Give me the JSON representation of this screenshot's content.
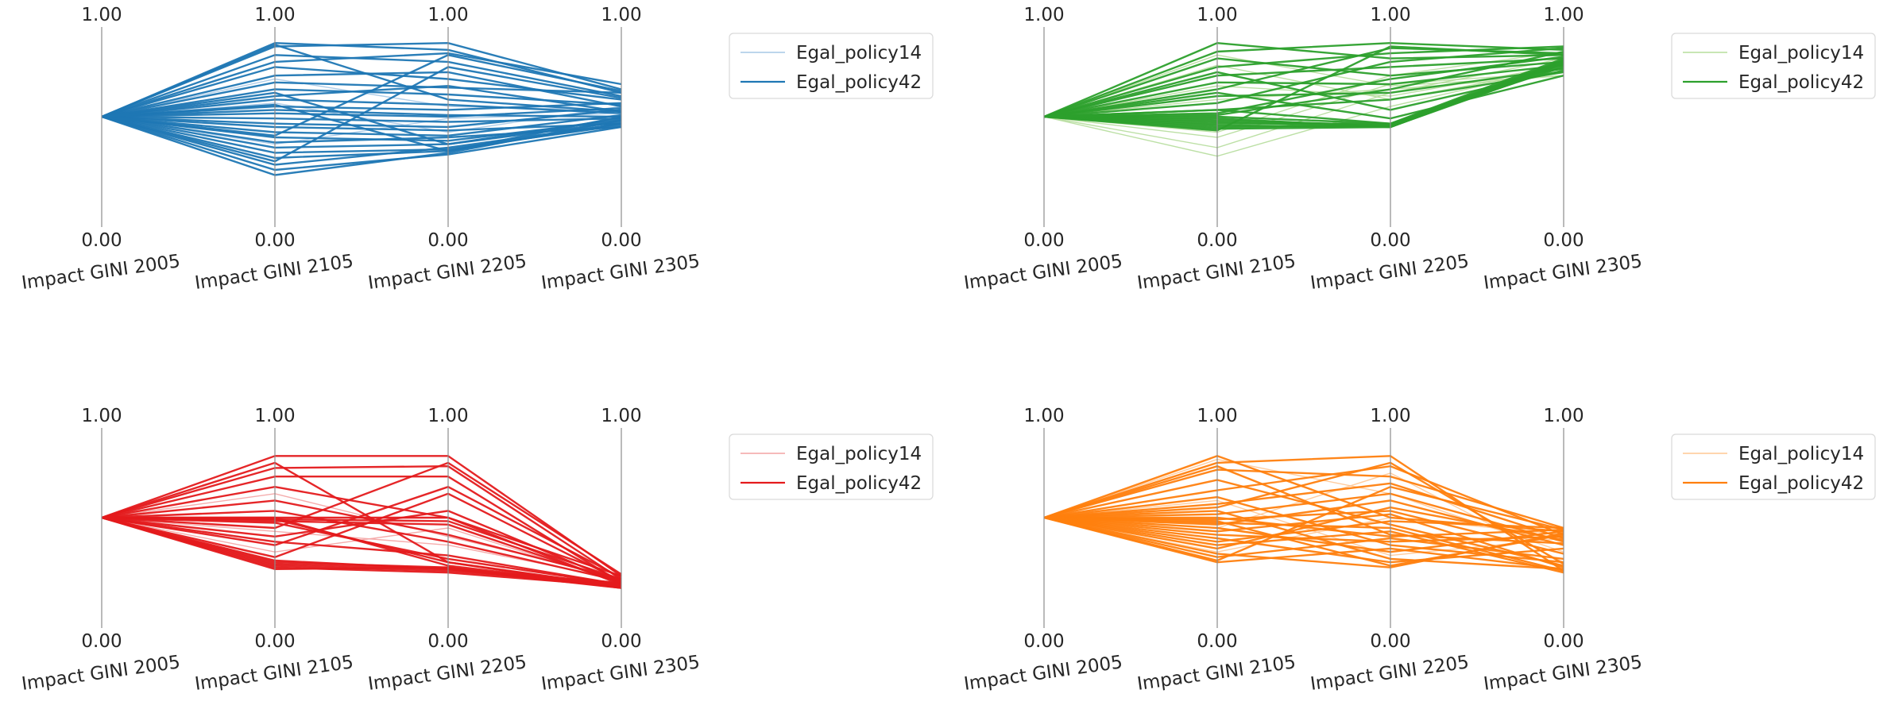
{
  "chart_data": [
    {
      "type": "parallel_coordinates",
      "color": "#1f77b4",
      "light_color": "#a6c8e6",
      "axes": [
        "Impact GINI 2005",
        "Impact GINI 2105",
        "Impact GINI 2205",
        "Impact GINI 2305"
      ],
      "axis_max_label": "1.00",
      "axis_min_label": "0.00",
      "ylim": [
        0,
        1
      ],
      "legend": {
        "position": "right",
        "entries": [
          {
            "label": "Egal_policy14",
            "style": "light"
          },
          {
            "label": "Egal_policy42",
            "style": "dark"
          }
        ]
      },
      "series": [
        {
          "style": "dark",
          "values": [
            [
              0.56,
              0.99,
              0.95,
              0.7
            ],
            [
              0.56,
              0.97,
              0.99,
              0.72
            ],
            [
              0.56,
              0.92,
              0.88,
              0.68
            ],
            [
              0.56,
              0.88,
              0.93,
              0.75
            ],
            [
              0.56,
              0.85,
              0.78,
              0.66
            ],
            [
              0.56,
              0.8,
              0.82,
              0.62
            ],
            [
              0.56,
              0.76,
              0.73,
              0.7
            ],
            [
              0.56,
              0.72,
              0.69,
              0.63
            ],
            [
              0.56,
              0.68,
              0.74,
              0.59
            ],
            [
              0.56,
              0.66,
              0.63,
              0.58
            ],
            [
              0.56,
              0.62,
              0.6,
              0.64
            ],
            [
              0.56,
              0.6,
              0.57,
              0.56
            ],
            [
              0.56,
              0.58,
              0.56,
              0.61
            ],
            [
              0.56,
              0.55,
              0.53,
              0.55
            ],
            [
              0.56,
              0.52,
              0.5,
              0.6
            ],
            [
              0.56,
              0.5,
              0.48,
              0.52
            ],
            [
              0.56,
              0.47,
              0.45,
              0.57
            ],
            [
              0.56,
              0.44,
              0.42,
              0.54
            ],
            [
              0.56,
              0.41,
              0.44,
              0.5
            ],
            [
              0.56,
              0.38,
              0.4,
              0.53
            ],
            [
              0.56,
              0.35,
              0.37,
              0.51
            ],
            [
              0.56,
              0.32,
              0.36,
              0.56
            ],
            [
              0.56,
              0.28,
              0.38,
              0.52
            ],
            [
              0.56,
              0.25,
              0.34,
              0.5
            ],
            [
              0.56,
              0.22,
              0.35,
              0.54
            ],
            [
              0.56,
              0.98,
              0.66,
              0.59
            ],
            [
              0.56,
              0.3,
              0.85,
              0.67
            ],
            [
              0.56,
              0.7,
              0.4,
              0.55
            ],
            [
              0.56,
              0.45,
              0.92,
              0.71
            ],
            [
              0.56,
              0.63,
              0.36,
              0.52
            ]
          ]
        },
        {
          "style": "light",
          "values": [
            [
              0.56,
              0.78,
              0.62,
              0.6
            ],
            [
              0.56,
              0.4,
              0.55,
              0.58
            ],
            [
              0.56,
              0.64,
              0.47,
              0.62
            ]
          ]
        }
      ]
    },
    {
      "type": "parallel_coordinates",
      "color": "#2ca02c",
      "light_color": "#b5dd9b",
      "axes": [
        "Impact GINI 2005",
        "Impact GINI 2105",
        "Impact GINI 2205",
        "Impact GINI 2305"
      ],
      "axis_max_label": "1.00",
      "axis_min_label": "0.00",
      "ylim": [
        0,
        1
      ],
      "legend": {
        "position": "right",
        "entries": [
          {
            "label": "Egal_policy14",
            "style": "light"
          },
          {
            "label": "Egal_policy42",
            "style": "dark"
          }
        ]
      },
      "series": [
        {
          "style": "dark",
          "values": [
            [
              0.56,
              0.99,
              0.9,
              0.92
            ],
            [
              0.56,
              0.94,
              0.99,
              0.95
            ],
            [
              0.56,
              0.9,
              0.8,
              0.88
            ],
            [
              0.56,
              0.85,
              0.93,
              0.97
            ],
            [
              0.56,
              0.8,
              0.85,
              0.9
            ],
            [
              0.56,
              0.76,
              0.75,
              0.86
            ],
            [
              0.56,
              0.72,
              0.96,
              0.93
            ],
            [
              0.56,
              0.68,
              0.7,
              0.84
            ],
            [
              0.56,
              0.64,
              0.88,
              0.96
            ],
            [
              0.56,
              0.6,
              0.66,
              0.82
            ],
            [
              0.56,
              0.58,
              0.78,
              0.91
            ],
            [
              0.56,
              0.56,
              0.52,
              0.88
            ],
            [
              0.56,
              0.55,
              0.5,
              0.87
            ],
            [
              0.56,
              0.54,
              0.51,
              0.89
            ],
            [
              0.56,
              0.53,
              0.5,
              0.86
            ],
            [
              0.56,
              0.52,
              0.52,
              0.9
            ],
            [
              0.56,
              0.51,
              0.5,
              0.88
            ],
            [
              0.56,
              0.5,
              0.51,
              0.87
            ],
            [
              0.56,
              0.49,
              0.5,
              0.89
            ],
            [
              0.56,
              0.6,
              0.52,
              0.85
            ],
            [
              0.56,
              0.57,
              0.72,
              0.94
            ],
            [
              0.56,
              0.48,
              0.97,
              0.92
            ],
            [
              0.56,
              0.7,
              0.55,
              0.8
            ],
            [
              0.56,
              0.82,
              0.6,
              0.83
            ]
          ]
        },
        {
          "style": "light",
          "values": [
            [
              0.56,
              0.38,
              0.7,
              0.9
            ],
            [
              0.56,
              0.33,
              0.62,
              0.85
            ],
            [
              0.56,
              0.44,
              0.75,
              0.82
            ],
            [
              0.56,
              0.47,
              0.8,
              0.94
            ],
            [
              0.56,
              0.66,
              0.72,
              0.8
            ],
            [
              0.56,
              0.74,
              0.68,
              0.86
            ],
            [
              0.56,
              0.86,
              0.66,
              0.84
            ],
            [
              0.56,
              0.92,
              0.74,
              0.8
            ]
          ]
        }
      ]
    },
    {
      "type": "parallel_coordinates",
      "color": "#e41a1c",
      "light_color": "#f4a3a3",
      "axes": [
        "Impact GINI 2005",
        "Impact GINI 2105",
        "Impact GINI 2205",
        "Impact GINI 2305"
      ],
      "axis_max_label": "1.00",
      "axis_min_label": "0.00",
      "ylim": [
        0,
        1
      ],
      "legend": {
        "position": "right",
        "entries": [
          {
            "label": "Egal_policy14",
            "style": "light"
          },
          {
            "label": "Egal_policy42",
            "style": "dark"
          }
        ]
      },
      "series": [
        {
          "style": "dark",
          "values": [
            [
              0.56,
              0.92,
              0.92,
              0.22
            ],
            [
              0.56,
              0.85,
              0.86,
              0.2
            ],
            [
              0.56,
              0.8,
              0.8,
              0.18
            ],
            [
              0.56,
              0.74,
              0.56,
              0.17
            ],
            [
              0.56,
              0.56,
              0.56,
              0.22
            ],
            [
              0.56,
              0.55,
              0.54,
              0.2
            ],
            [
              0.56,
              0.54,
              0.52,
              0.18
            ],
            [
              0.56,
              0.56,
              0.28,
              0.16
            ],
            [
              0.56,
              0.55,
              0.3,
              0.15
            ],
            [
              0.56,
              0.53,
              0.32,
              0.17
            ],
            [
              0.56,
              0.3,
              0.27,
              0.16
            ],
            [
              0.56,
              0.29,
              0.26,
              0.15
            ],
            [
              0.56,
              0.28,
              0.25,
              0.17
            ],
            [
              0.56,
              0.27,
              0.24,
              0.16
            ],
            [
              0.56,
              0.31,
              0.26,
              0.18
            ],
            [
              0.56,
              0.26,
              0.27,
              0.15
            ],
            [
              0.56,
              0.33,
              0.7,
              0.19
            ],
            [
              0.56,
              0.4,
              0.74,
              0.21
            ],
            [
              0.56,
              0.45,
              0.6,
              0.18
            ],
            [
              0.56,
              0.5,
              0.88,
              0.23
            ],
            [
              0.56,
              0.88,
              0.3,
              0.16
            ],
            [
              0.56,
              0.66,
              0.46,
              0.2
            ],
            [
              0.56,
              0.42,
              0.34,
              0.17
            ],
            [
              0.56,
              0.6,
              0.42,
              0.19
            ]
          ]
        },
        {
          "style": "light",
          "values": [
            [
              0.56,
              0.7,
              0.45,
              0.21
            ],
            [
              0.56,
              0.48,
              0.4,
              0.2
            ],
            [
              0.56,
              0.36,
              0.5,
              0.18
            ]
          ]
        }
      ]
    },
    {
      "type": "parallel_coordinates",
      "color": "#ff7f0e",
      "light_color": "#ffc793",
      "axes": [
        "Impact GINI 2005",
        "Impact GINI 2105",
        "Impact GINI 2205",
        "Impact GINI 2305"
      ],
      "axis_max_label": "1.00",
      "axis_min_label": "0.00",
      "ylim": [
        0,
        1
      ],
      "legend": {
        "position": "right",
        "entries": [
          {
            "label": "Egal_policy14",
            "style": "light"
          },
          {
            "label": "Egal_policy42",
            "style": "dark"
          }
        ]
      },
      "series": [
        {
          "style": "dark",
          "values": [
            [
              0.56,
              0.92,
              0.56,
              0.48
            ],
            [
              0.56,
              0.88,
              0.92,
              0.25
            ],
            [
              0.56,
              0.84,
              0.8,
              0.5
            ],
            [
              0.56,
              0.78,
              0.52,
              0.28
            ],
            [
              0.56,
              0.72,
              0.86,
              0.46
            ],
            [
              0.56,
              0.68,
              0.4,
              0.3
            ],
            [
              0.56,
              0.64,
              0.76,
              0.44
            ],
            [
              0.56,
              0.6,
              0.32,
              0.26
            ],
            [
              0.56,
              0.58,
              0.7,
              0.42
            ],
            [
              0.56,
              0.56,
              0.45,
              0.49
            ],
            [
              0.56,
              0.55,
              0.6,
              0.35
            ],
            [
              0.56,
              0.54,
              0.28,
              0.46
            ],
            [
              0.56,
              0.53,
              0.5,
              0.25
            ],
            [
              0.56,
              0.52,
              0.66,
              0.4
            ],
            [
              0.56,
              0.5,
              0.36,
              0.48
            ],
            [
              0.56,
              0.48,
              0.58,
              0.27
            ],
            [
              0.56,
              0.46,
              0.42,
              0.45
            ],
            [
              0.56,
              0.44,
              0.3,
              0.38
            ],
            [
              0.56,
              0.42,
              0.54,
              0.5
            ],
            [
              0.56,
              0.4,
              0.48,
              0.24
            ],
            [
              0.56,
              0.38,
              0.62,
              0.43
            ],
            [
              0.56,
              0.35,
              0.27,
              0.47
            ],
            [
              0.56,
              0.33,
              0.44,
              0.32
            ],
            [
              0.56,
              0.31,
              0.74,
              0.49
            ],
            [
              0.56,
              0.3,
              0.38,
              0.26
            ],
            [
              0.56,
              0.86,
              0.46,
              0.41
            ],
            [
              0.56,
              0.62,
              0.88,
              0.29
            ]
          ]
        },
        {
          "style": "light",
          "values": [
            [
              0.56,
              0.9,
              0.7,
              0.36
            ],
            [
              0.56,
              0.66,
              0.34,
              0.44
            ],
            [
              0.56,
              0.5,
              0.82,
              0.3
            ],
            [
              0.56,
              0.36,
              0.56,
              0.46
            ]
          ]
        }
      ]
    }
  ]
}
